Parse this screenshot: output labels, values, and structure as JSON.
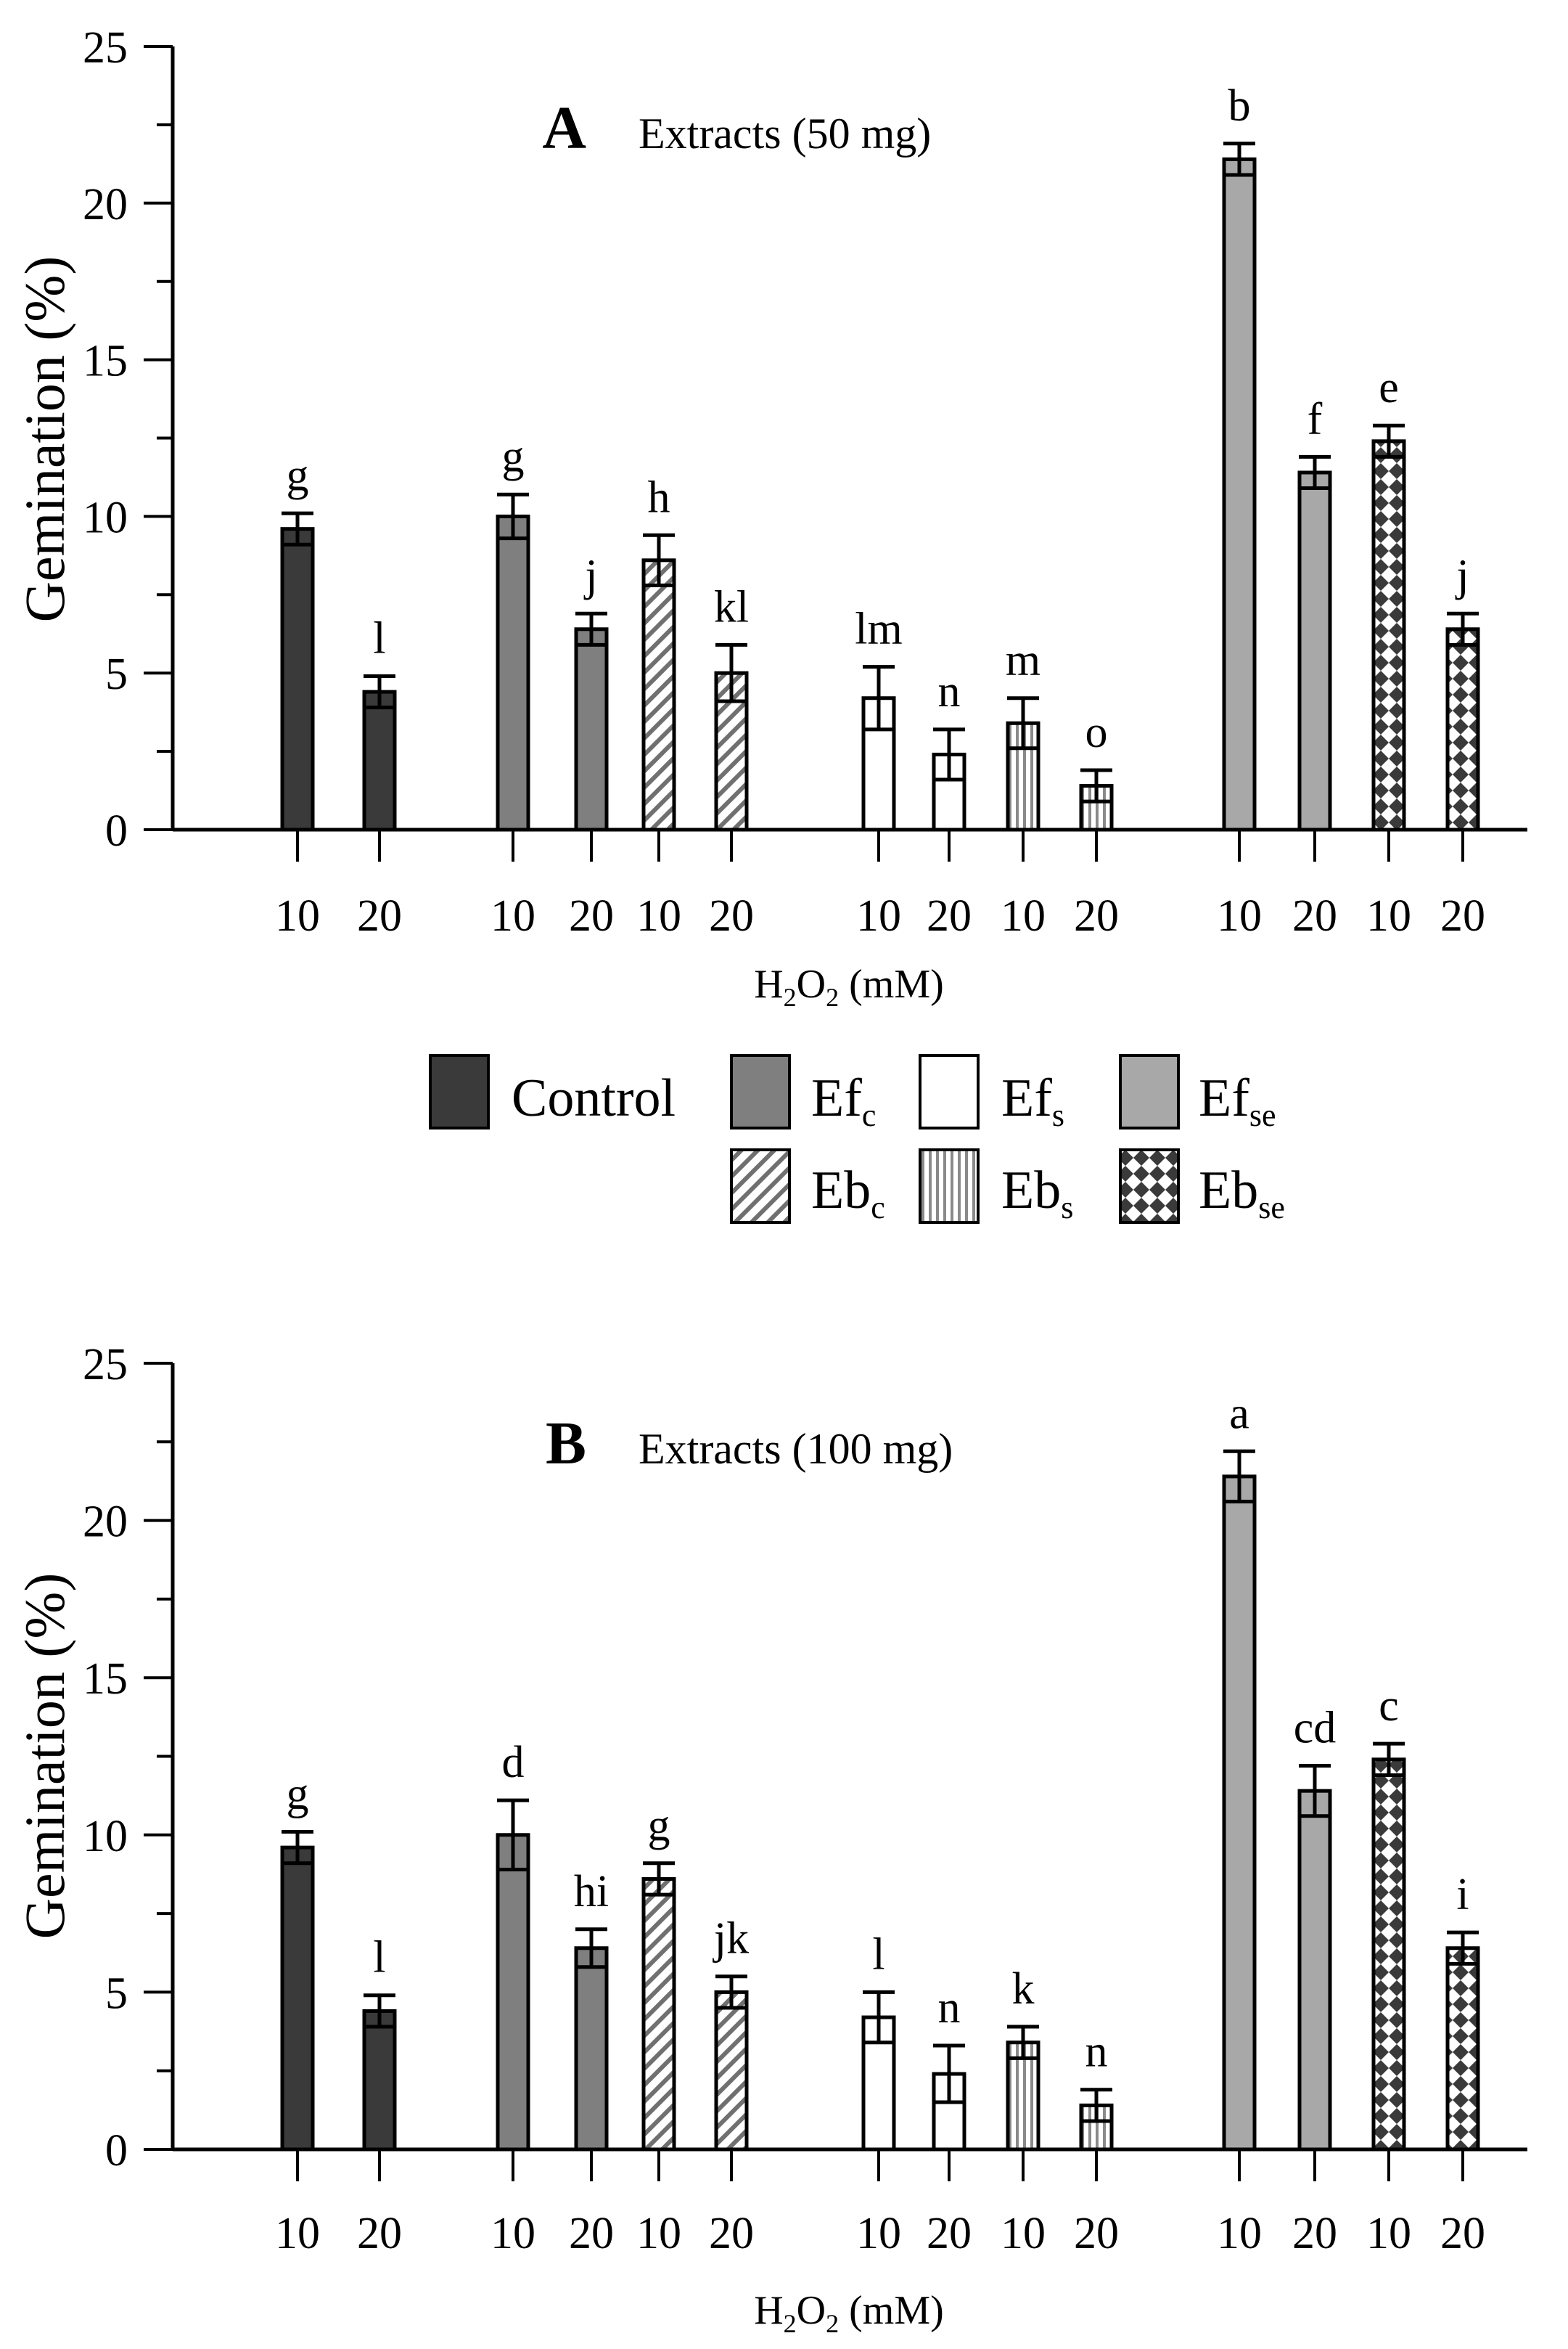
{
  "x_axis_label": {
    "base": "H",
    "sub1": "2",
    "mid": "O",
    "sub2": "2",
    "unit": " (mM)"
  },
  "y_axis_label": "Gemination (%)",
  "legend": [
    {
      "key": "control",
      "text": "Control",
      "sub": "",
      "fill": "#3a3a3a",
      "pattern": "solid"
    },
    {
      "key": "efc",
      "text": "Ef",
      "sub": "c",
      "fill": "#7f7f7f",
      "pattern": "solid"
    },
    {
      "key": "efs",
      "text": "Ef",
      "sub": "s",
      "fill": "#ffffff",
      "pattern": "solid"
    },
    {
      "key": "efse",
      "text": "Ef",
      "sub": "se",
      "fill": "#a8a8a8",
      "pattern": "solid"
    },
    {
      "key": "ebc",
      "text": "Eb",
      "sub": "c",
      "fill": "#ffffff",
      "pattern": "diagonal"
    },
    {
      "key": "ebs",
      "text": "Eb",
      "sub": "s",
      "fill": "#ffffff",
      "pattern": "vertical"
    },
    {
      "key": "ebse",
      "text": "Eb",
      "sub": "se",
      "fill": "#ffffff",
      "pattern": "checker"
    }
  ],
  "chart_data": [
    {
      "type": "bar",
      "panel_letter": "A",
      "title": "Extracts (50 mg)",
      "xlabel": "H2O2 (mM)",
      "ylabel": "Gemination (%)",
      "ylim": [
        0,
        25
      ],
      "yticks": [
        0,
        5,
        10,
        15,
        20,
        25
      ],
      "categories": [
        "10",
        "20",
        "10",
        "20",
        "10",
        "20",
        "10",
        "20",
        "10",
        "20",
        "10",
        "20",
        "10",
        "20"
      ],
      "series_per_bar": [
        "control",
        "control",
        "efc",
        "efc",
        "ebc",
        "ebc",
        "efs",
        "efs",
        "ebs",
        "ebs",
        "efse",
        "efse",
        "ebse",
        "ebse"
      ],
      "values": [
        9.6,
        4.4,
        10.0,
        6.4,
        8.6,
        5.0,
        4.2,
        2.4,
        3.4,
        1.4,
        21.4,
        11.4,
        12.4,
        6.4
      ],
      "errors": [
        0.5,
        0.5,
        0.7,
        0.5,
        0.8,
        0.9,
        1.0,
        0.8,
        0.8,
        0.5,
        0.5,
        0.5,
        0.5,
        0.5
      ],
      "letters": [
        "g",
        "l",
        "g",
        "j",
        "h",
        "kl",
        "lm",
        "n",
        "m",
        "o",
        "b",
        "f",
        "e",
        "j"
      ]
    },
    {
      "type": "bar",
      "panel_letter": "B",
      "title": "Extracts (100 mg)",
      "xlabel": "H2O2 (mM)",
      "ylabel": "Gemination (%)",
      "ylim": [
        0,
        25
      ],
      "yticks": [
        0,
        5,
        10,
        15,
        20,
        25
      ],
      "categories": [
        "10",
        "20",
        "10",
        "20",
        "10",
        "20",
        "10",
        "20",
        "10",
        "20",
        "10",
        "20",
        "10",
        "20"
      ],
      "series_per_bar": [
        "control",
        "control",
        "efc",
        "efc",
        "ebc",
        "ebc",
        "efs",
        "efs",
        "ebs",
        "ebs",
        "efse",
        "efse",
        "ebse",
        "ebse"
      ],
      "values": [
        9.6,
        4.4,
        10.0,
        6.4,
        8.6,
        5.0,
        4.2,
        2.4,
        3.4,
        1.4,
        21.4,
        11.4,
        12.4,
        6.4
      ],
      "errors": [
        0.5,
        0.5,
        1.1,
        0.6,
        0.5,
        0.5,
        0.8,
        0.9,
        0.5,
        0.5,
        0.8,
        0.8,
        0.5,
        0.5
      ],
      "letters": [
        "g",
        "l",
        "d",
        "hi",
        "g",
        "jk",
        "l",
        "n",
        "k",
        "n",
        "a",
        "cd",
        "c",
        "i"
      ]
    }
  ]
}
